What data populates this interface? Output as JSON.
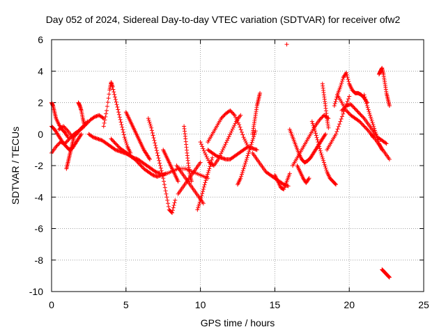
{
  "chart_data": {
    "type": "scatter",
    "title": "Day 052 of 2024, Sidereal Day-to-day VTEC variation (SDTVAR) for receiver ofw2",
    "xlabel": "GPS time / hours",
    "ylabel": "SDTVAR / TECUs",
    "xlim": [
      0,
      25
    ],
    "ylim": [
      -10,
      6
    ],
    "xticks": [
      "0",
      "5",
      "10",
      "15",
      "20",
      "25"
    ],
    "yticks": [
      "-10",
      "-8",
      "-6",
      "-4",
      "-2",
      "0",
      "2",
      "4",
      "6"
    ],
    "grid": true,
    "marker": "plus",
    "color": "#ff0000",
    "series": [
      {
        "name": "s1",
        "x": [
          0.0,
          0.3,
          0.6,
          0.9,
          1.2,
          1.5,
          1.8,
          2.1,
          2.4
        ],
        "y": [
          -1.2,
          -0.8,
          -0.5,
          -0.6,
          -0.3,
          0.0,
          0.2,
          0.4,
          0.8
        ]
      },
      {
        "name": "s2",
        "x": [
          0.0,
          0.2,
          0.4,
          0.6,
          0.8,
          1.0,
          1.2,
          1.4,
          1.6,
          1.8,
          2.0
        ],
        "y": [
          0.5,
          0.3,
          0.0,
          -0.3,
          -0.6,
          -0.8,
          -1.0,
          -0.9,
          -0.6,
          -0.3,
          0.0
        ]
      },
      {
        "name": "s3",
        "x": [
          0.0,
          0.1,
          0.2,
          0.3,
          0.5,
          0.7,
          0.9,
          1.1
        ],
        "y": [
          2.0,
          1.8,
          1.4,
          1.0,
          0.6,
          0.3,
          0.1,
          -0.2
        ]
      },
      {
        "name": "s4",
        "x": [
          0.5,
          0.8,
          1.1,
          1.4,
          1.7,
          2.0,
          2.3,
          2.6,
          2.9,
          3.2,
          3.5
        ],
        "y": [
          0.3,
          0.5,
          0.2,
          -0.2,
          0.0,
          0.4,
          0.6,
          0.9,
          1.1,
          1.2,
          1.0
        ]
      },
      {
        "name": "s5",
        "x": [
          1.0,
          1.1,
          1.2,
          1.3,
          1.4,
          1.5
        ],
        "y": [
          -2.2,
          -1.8,
          -1.4,
          -1.0,
          -0.6,
          -0.2
        ]
      },
      {
        "name": "s6",
        "x": [
          1.8,
          1.9,
          2.0,
          2.1,
          2.2
        ],
        "y": [
          2.0,
          1.8,
          1.5,
          1.0,
          0.6
        ]
      },
      {
        "name": "s7",
        "x": [
          2.5,
          2.8,
          3.1,
          3.4,
          3.7,
          4.0,
          4.3,
          4.6,
          4.9,
          5.2
        ],
        "y": [
          0.0,
          -0.2,
          -0.3,
          -0.4,
          -0.6,
          -0.8,
          -1.0,
          -1.1,
          -1.2,
          -1.3
        ]
      },
      {
        "name": "s8",
        "x": [
          3.5,
          3.7,
          3.9,
          4.0,
          4.1,
          4.3,
          4.5,
          4.7,
          4.9,
          5.1,
          5.3
        ],
        "y": [
          0.5,
          1.5,
          2.8,
          3.3,
          3.0,
          2.2,
          1.4,
          0.6,
          -0.2,
          -0.8,
          -1.2
        ]
      },
      {
        "name": "s9",
        "x": [
          4.0,
          4.3,
          4.6,
          4.9,
          5.2,
          5.5,
          5.8,
          6.1,
          6.4,
          6.7,
          7.0,
          7.3
        ],
        "y": [
          -0.3,
          -0.6,
          -0.9,
          -1.1,
          -1.3,
          -1.5,
          -1.6,
          -1.8,
          -2.0,
          -2.2,
          -2.4,
          -2.5
        ]
      },
      {
        "name": "s10",
        "x": [
          5.0,
          5.2,
          5.4,
          5.6,
          5.8,
          6.0,
          6.2,
          6.4,
          6.6
        ],
        "y": [
          1.4,
          1.0,
          0.6,
          0.2,
          -0.2,
          -0.6,
          -1.0,
          -1.3,
          -1.6
        ]
      },
      {
        "name": "s11",
        "x": [
          5.0,
          5.3,
          5.6,
          5.9,
          6.2,
          6.5,
          6.8,
          7.1,
          7.4,
          7.7
        ],
        "y": [
          -1.2,
          -1.4,
          -1.6,
          -1.9,
          -2.2,
          -2.4,
          -2.6,
          -2.7,
          -2.6,
          -2.5
        ]
      },
      {
        "name": "s12",
        "x": [
          6.5,
          6.7,
          6.9,
          7.1,
          7.3,
          7.5,
          7.7,
          7.9,
          8.1,
          8.3
        ],
        "y": [
          1.0,
          0.4,
          -0.4,
          -1.2,
          -2.0,
          -2.8,
          -3.8,
          -4.8,
          -5.0,
          -4.2
        ]
      },
      {
        "name": "s13",
        "x": [
          7.5,
          7.7,
          7.9,
          8.1,
          8.3,
          8.5
        ],
        "y": [
          -1.0,
          -1.4,
          -1.8,
          -2.2,
          -2.6,
          -3.0
        ]
      },
      {
        "name": "s14",
        "x": [
          7.5,
          8.0,
          8.5,
          9.0,
          9.5,
          10.0,
          10.5
        ],
        "y": [
          -2.6,
          -2.4,
          -2.2,
          -2.2,
          -2.4,
          -2.6,
          -2.8
        ]
      },
      {
        "name": "s15",
        "x": [
          8.5,
          8.8,
          9.1,
          9.4,
          9.7,
          10.0
        ],
        "y": [
          -3.8,
          -3.4,
          -3.0,
          -2.6,
          -2.2,
          -1.8
        ]
      },
      {
        "name": "s16",
        "x": [
          8.4,
          8.7,
          9.0,
          9.3,
          9.6,
          9.9,
          10.2
        ],
        "y": [
          -2.0,
          -2.4,
          -2.8,
          -3.2,
          -3.6,
          -4.0,
          -4.4
        ]
      },
      {
        "name": "s17",
        "x": [
          8.9,
          9.0,
          9.1,
          9.2,
          9.3,
          9.4
        ],
        "y": [
          0.5,
          -0.3,
          -1.2,
          -2.0,
          -2.6,
          -3.0
        ]
      },
      {
        "name": "s18",
        "x": [
          9.8,
          10.0,
          10.2,
          10.4,
          10.6,
          10.8
        ],
        "y": [
          -4.8,
          -4.2,
          -3.5,
          -2.8,
          -2.2,
          -1.5
        ]
      },
      {
        "name": "s19",
        "x": [
          10.0,
          10.3,
          10.6,
          10.9,
          11.2,
          11.5,
          11.8,
          12.1,
          12.4,
          12.7
        ],
        "y": [
          -0.5,
          -1.2,
          -1.8,
          -2.0,
          -1.6,
          -1.0,
          -0.4,
          0.2,
          0.8,
          1.2
        ]
      },
      {
        "name": "s20",
        "x": [
          10.5,
          10.8,
          11.1,
          11.4,
          11.7,
          12.0,
          12.3,
          12.6,
          12.9,
          13.2
        ],
        "y": [
          -0.5,
          0.0,
          0.5,
          1.0,
          1.3,
          1.5,
          1.2,
          0.6,
          -0.2,
          -0.8
        ]
      },
      {
        "name": "s21",
        "x": [
          10.5,
          10.8,
          11.1,
          11.4,
          11.7,
          12.0,
          12.3,
          12.6,
          12.9,
          13.2,
          13.5,
          13.8
        ],
        "y": [
          -1.0,
          -1.2,
          -1.4,
          -1.5,
          -1.6,
          -1.6,
          -1.4,
          -1.2,
          -1.0,
          -0.8,
          -0.9,
          -1.0
        ]
      },
      {
        "name": "s22",
        "x": [
          12.5,
          12.7,
          12.9,
          13.1,
          13.3,
          13.5,
          13.7
        ],
        "y": [
          -3.2,
          -2.8,
          -2.2,
          -1.6,
          -1.0,
          -0.4,
          0.2
        ]
      },
      {
        "name": "s23",
        "x": [
          13.5,
          13.6,
          13.7,
          13.8,
          13.9,
          14.0
        ],
        "y": [
          0.0,
          0.6,
          1.2,
          1.8,
          2.2,
          2.6
        ]
      },
      {
        "name": "s24",
        "x": [
          13.5,
          13.8,
          14.1,
          14.4,
          14.7,
          15.0,
          15.3,
          15.6,
          15.9
        ],
        "y": [
          -1.2,
          -1.6,
          -2.0,
          -2.4,
          -2.6,
          -2.8,
          -3.0,
          -3.2,
          -3.3
        ]
      },
      {
        "name": "s25",
        "x": [
          15.0,
          15.2,
          15.4,
          15.6,
          15.8,
          16.0
        ],
        "y": [
          -2.6,
          -3.0,
          -3.4,
          -3.5,
          -3.0,
          -2.5
        ]
      },
      {
        "name": "s26",
        "x": [
          15.8
        ],
        "y": [
          5.7
        ]
      },
      {
        "name": "s27",
        "x": [
          16.0,
          16.2,
          16.4,
          16.6,
          16.8,
          17.0,
          17.2,
          17.4,
          17.6,
          17.8,
          18.0,
          18.2,
          18.4
        ],
        "y": [
          0.3,
          -0.2,
          -0.7,
          -1.2,
          -1.6,
          -1.8,
          -1.7,
          -1.5,
          -1.2,
          -0.9,
          -0.6,
          -0.3,
          0.0
        ]
      },
      {
        "name": "s28",
        "x": [
          16.2,
          16.5,
          16.8,
          17.1,
          17.4,
          17.7,
          18.0,
          18.3,
          18.6
        ],
        "y": [
          -2.0,
          -1.5,
          -1.0,
          -0.5,
          0.0,
          0.5,
          0.9,
          1.2,
          1.0
        ]
      },
      {
        "name": "s29",
        "x": [
          16.5,
          16.7,
          16.9,
          17.1,
          17.3
        ],
        "y": [
          -2.0,
          -2.4,
          -2.8,
          -3.1,
          -2.8
        ]
      },
      {
        "name": "s30",
        "x": [
          17.5,
          17.7,
          17.9,
          18.1,
          18.3,
          18.5,
          18.7,
          18.9,
          19.1
        ],
        "y": [
          0.8,
          0.2,
          -0.5,
          -1.2,
          -1.8,
          -2.4,
          -2.8,
          -3.0,
          -3.2
        ]
      },
      {
        "name": "s31",
        "x": [
          18.2,
          18.3,
          18.4,
          18.5,
          18.6
        ],
        "y": [
          3.2,
          2.5,
          1.8,
          1.0,
          0.4
        ]
      },
      {
        "name": "s32",
        "x": [
          18.5,
          18.8,
          19.1,
          19.4,
          19.7,
          20.0
        ],
        "y": [
          -1.0,
          -0.5,
          0.0,
          0.8,
          1.6,
          2.4
        ]
      },
      {
        "name": "s33",
        "x": [
          19.0,
          19.2,
          19.4,
          19.6,
          19.8,
          20.0,
          20.2,
          20.4,
          20.6,
          20.8,
          21.0,
          21.2
        ],
        "y": [
          1.8,
          2.5,
          3.0,
          3.6,
          3.9,
          3.2,
          2.8,
          2.6,
          2.6,
          2.5,
          2.3,
          2.0
        ]
      },
      {
        "name": "s34",
        "x": [
          19.2,
          19.5,
          19.8,
          20.1,
          20.4,
          20.7,
          21.0,
          21.3,
          21.6
        ],
        "y": [
          2.5,
          2.0,
          1.5,
          1.2,
          1.0,
          0.8,
          0.5,
          0.2,
          -0.2
        ]
      },
      {
        "name": "s35",
        "x": [
          19.5,
          19.8,
          20.1,
          20.4,
          20.7,
          21.0,
          21.3,
          21.6,
          21.9,
          22.2,
          22.5
        ],
        "y": [
          1.5,
          1.8,
          1.9,
          1.6,
          1.3,
          1.0,
          0.6,
          0.2,
          -0.2,
          -0.4,
          -0.6
        ]
      },
      {
        "name": "s36",
        "x": [
          21.0,
          21.2,
          21.4,
          21.6,
          21.8,
          22.0,
          22.2
        ],
        "y": [
          2.5,
          1.8,
          1.2,
          0.6,
          0.0,
          -0.6,
          -1.0
        ]
      },
      {
        "name": "s37",
        "x": [
          21.5,
          21.8,
          22.1,
          22.4,
          22.7
        ],
        "y": [
          0.0,
          -0.4,
          -0.8,
          -1.2,
          -1.6
        ]
      },
      {
        "name": "s38",
        "x": [
          22.0,
          22.1,
          22.2,
          22.3,
          22.4,
          22.5,
          22.6,
          22.7
        ],
        "y": [
          3.8,
          4.0,
          4.2,
          3.8,
          3.2,
          2.6,
          2.2,
          1.8
        ]
      },
      {
        "name": "s39",
        "x": [
          22.2,
          22.3,
          22.4,
          22.5,
          22.6,
          22.7
        ],
        "y": [
          -8.6,
          -8.7,
          -8.8,
          -8.9,
          -9.0,
          -9.1
        ]
      }
    ]
  }
}
